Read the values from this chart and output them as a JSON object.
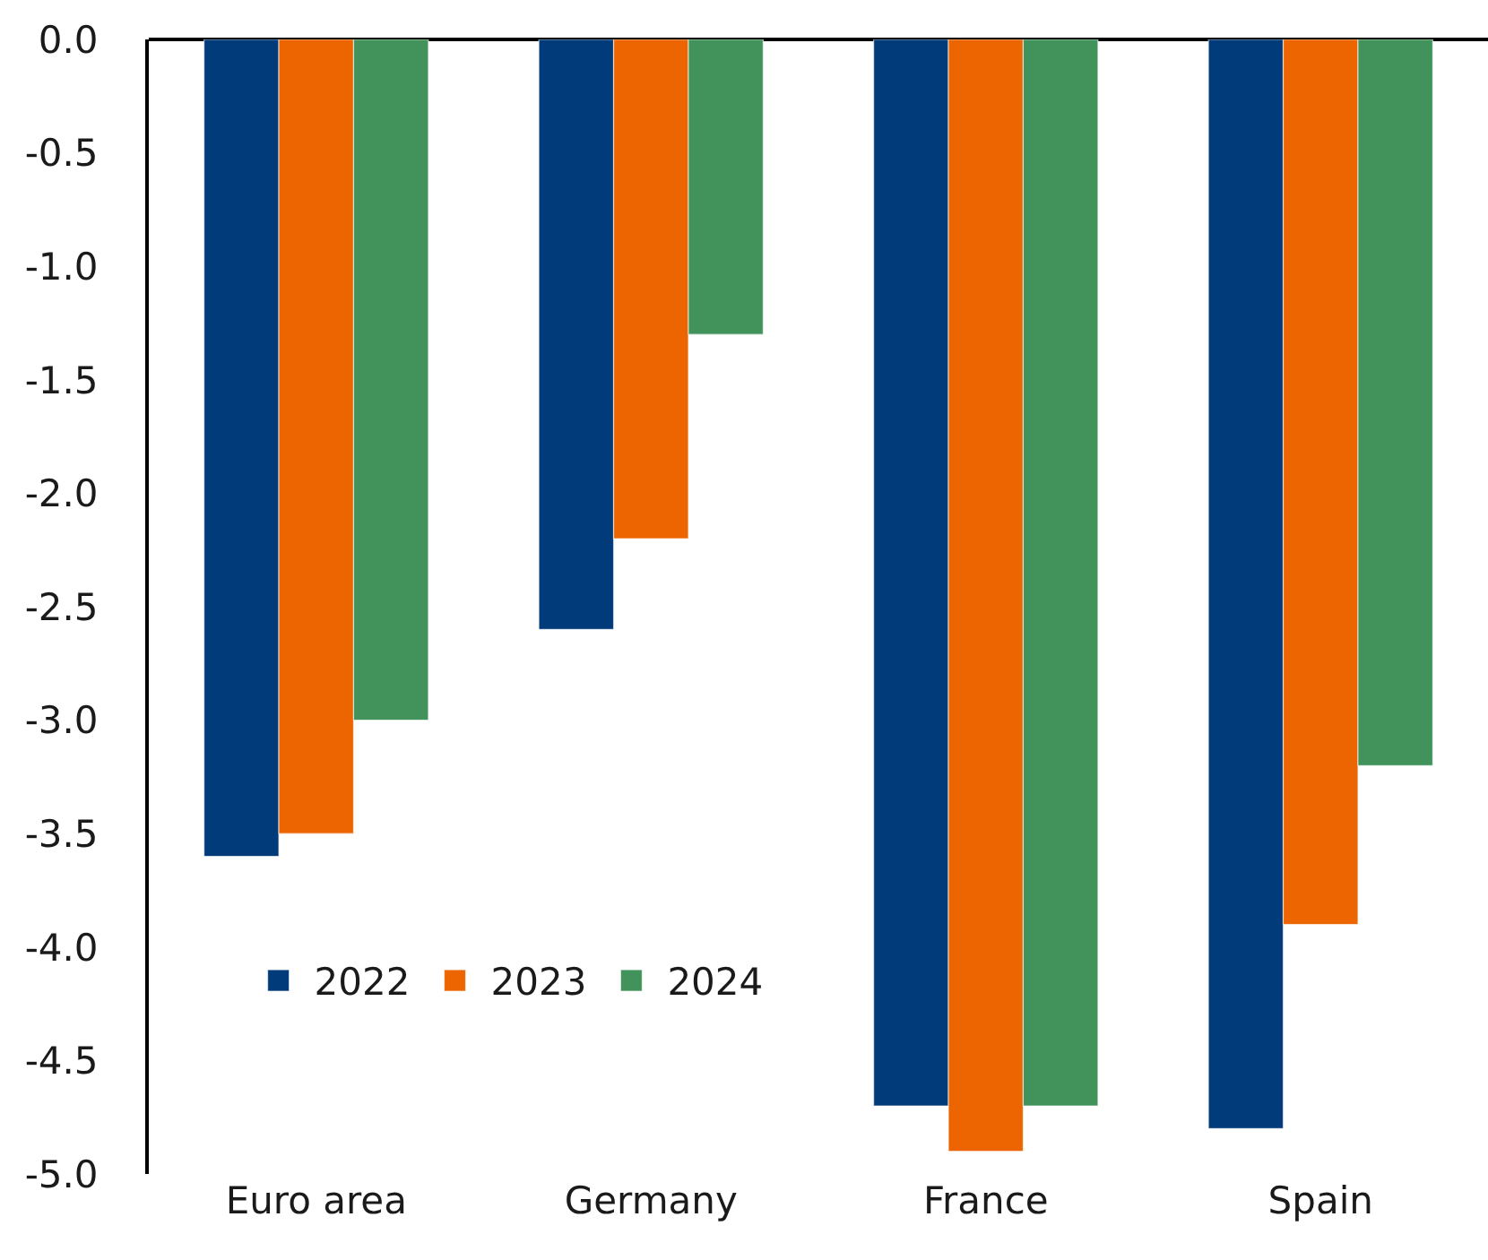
{
  "chart_data": {
    "type": "bar",
    "categories": [
      "Euro area",
      "Germany",
      "France",
      "Spain"
    ],
    "series": [
      {
        "name": "2022",
        "color": "#023b7a",
        "values": [
          -3.6,
          -2.6,
          -4.7,
          -4.8
        ]
      },
      {
        "name": "2023",
        "color": "#ec6500",
        "values": [
          -3.5,
          -2.2,
          -4.9,
          -3.9
        ]
      },
      {
        "name": "2024",
        "color": "#42925c",
        "values": [
          -3.0,
          -1.3,
          -4.7,
          -3.2
        ]
      }
    ],
    "ylim": [
      -5,
      0
    ],
    "yticks": [
      {
        "value": 0,
        "label": "0.0"
      },
      -0.5,
      {
        "value": -1,
        "label": "-1.0"
      },
      -1.5,
      {
        "value": -2,
        "label": "-2.0"
      },
      -2.5,
      {
        "value": -3,
        "label": "-3.0"
      },
      -3.5,
      {
        "value": -4,
        "label": "-4.0"
      },
      -4.5,
      {
        "value": -5,
        "label": "-5.0"
      }
    ],
    "grid": false,
    "legend": "bottom left"
  }
}
